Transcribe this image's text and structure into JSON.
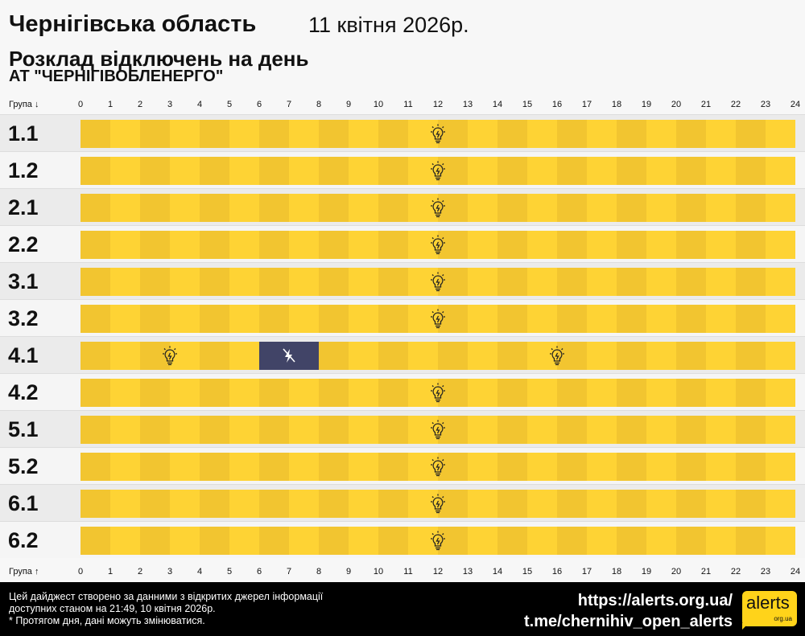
{
  "header": {
    "region": "Чернігівська область",
    "date": "11 квітня 2026р.",
    "subtitle": "Розклад відключень на день",
    "company": "АТ \"ЧЕРНІГІВОБЛЕНЕРГО\""
  },
  "axis": {
    "top_label": "Група ↓",
    "bottom_label": "Група ↑",
    "hours": [
      "0",
      "1",
      "2",
      "3",
      "4",
      "5",
      "6",
      "7",
      "8",
      "9",
      "10",
      "11",
      "12",
      "13",
      "14",
      "15",
      "16",
      "17",
      "18",
      "19",
      "20",
      "21",
      "22",
      "23",
      "24"
    ]
  },
  "colors": {
    "power_on_dark": "#f2c530",
    "power_on_light": "#fed334",
    "outage": "#414467"
  },
  "groups": [
    {
      "name": "1.1",
      "segments": [
        {
          "start": 0,
          "end": 24,
          "status": "on"
        }
      ]
    },
    {
      "name": "1.2",
      "segments": [
        {
          "start": 0,
          "end": 24,
          "status": "on"
        }
      ]
    },
    {
      "name": "2.1",
      "segments": [
        {
          "start": 0,
          "end": 24,
          "status": "on"
        }
      ]
    },
    {
      "name": "2.2",
      "segments": [
        {
          "start": 0,
          "end": 24,
          "status": "on"
        }
      ]
    },
    {
      "name": "3.1",
      "segments": [
        {
          "start": 0,
          "end": 24,
          "status": "on"
        }
      ]
    },
    {
      "name": "3.2",
      "segments": [
        {
          "start": 0,
          "end": 24,
          "status": "on"
        }
      ]
    },
    {
      "name": "4.1",
      "segments": [
        {
          "start": 0,
          "end": 6,
          "status": "on"
        },
        {
          "start": 6,
          "end": 8,
          "status": "off"
        },
        {
          "start": 8,
          "end": 24,
          "status": "on"
        }
      ]
    },
    {
      "name": "4.2",
      "segments": [
        {
          "start": 0,
          "end": 24,
          "status": "on"
        }
      ]
    },
    {
      "name": "5.1",
      "segments": [
        {
          "start": 0,
          "end": 24,
          "status": "on"
        }
      ]
    },
    {
      "name": "5.2",
      "segments": [
        {
          "start": 0,
          "end": 24,
          "status": "on"
        }
      ]
    },
    {
      "name": "6.1",
      "segments": [
        {
          "start": 0,
          "end": 24,
          "status": "on"
        }
      ]
    },
    {
      "name": "6.2",
      "segments": [
        {
          "start": 0,
          "end": 24,
          "status": "on"
        }
      ]
    }
  ],
  "icons": {
    "on": "lightbulb-icon",
    "off": "no-power-icon"
  },
  "footer": {
    "note1": "Цей дайджест створено за данними з відкритих джерел інформації",
    "note2": "доступних станом на 21:49, 10 квітня 2026р.",
    "note3": "* Протягом дня, дані можуть змінюватися.",
    "link1": "https://alerts.org.ua/",
    "link2": "t.me/chernihiv_open_alerts",
    "logo_main": "alerts",
    "logo_sub": "org.ua"
  }
}
